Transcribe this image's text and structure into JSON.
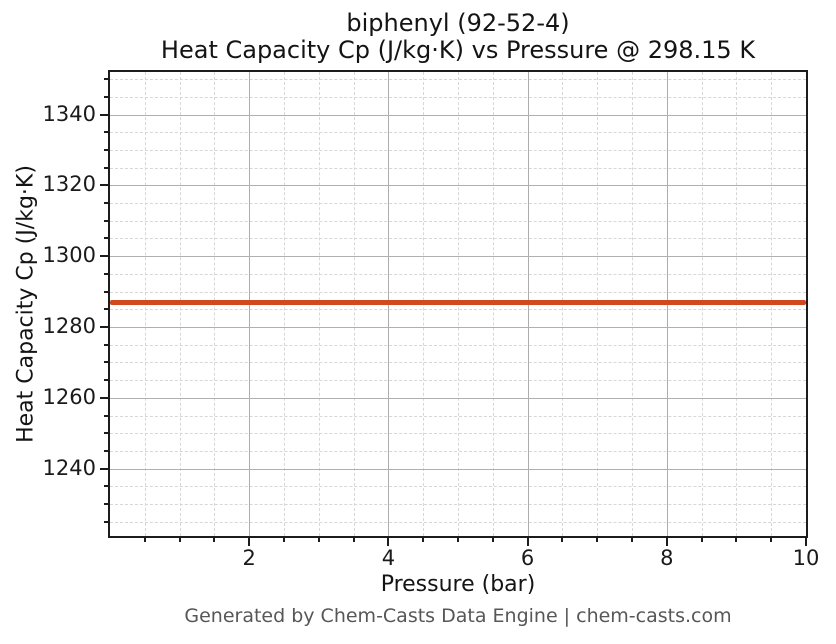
{
  "figure": {
    "footer": "Generated by Chem-Casts Data Engine | chem-casts.com"
  },
  "chart_data": {
    "type": "line",
    "title": "biphenyl (92-52-4)\nHeat Capacity Cp (J/kg·K) vs Pressure @ 298.15 K",
    "title_lines": [
      "biphenyl (92-52-4)",
      "Heat Capacity Cp (J/kg·K) vs Pressure @ 298.15 K"
    ],
    "substance": "biphenyl",
    "cas_number": "92-52-4",
    "temperature": "298.15 K",
    "xlabel": "Pressure (bar)",
    "ylabel": "Heat Capacity Cp (J/kg·K)",
    "xlim": [
      0,
      10
    ],
    "ylim": [
      1221,
      1352
    ],
    "x_major_ticks": [
      2,
      4,
      6,
      8,
      10
    ],
    "x_minor_step": 0.5,
    "y_major_ticks": [
      1240,
      1260,
      1280,
      1300,
      1320,
      1340
    ],
    "y_minor_step": 5,
    "grid": {
      "major": true,
      "minor": true,
      "major_color": "#b0b0b0",
      "minor_color": "#d7d7d7"
    },
    "legend": "none",
    "series": [
      {
        "name": "Heat Capacity Cp",
        "color": "#d1491f",
        "line_width": 5,
        "x": [
          0,
          10
        ],
        "y": [
          1287,
          1287
        ]
      }
    ],
    "cp_constant_value_J_per_kgK": 1287
  }
}
